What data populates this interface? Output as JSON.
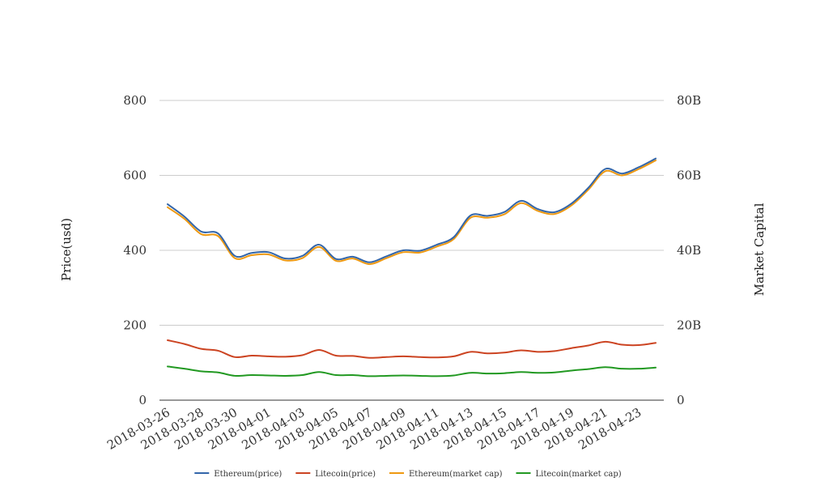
{
  "chart_data": {
    "type": "line",
    "title": "",
    "left_axis_label": "Price(usd)",
    "right_axis_label": "Market Capital",
    "left_ylim": [
      0,
      800
    ],
    "right_ylim": [
      0,
      80
    ],
    "left_ticks": [
      0,
      200,
      400,
      600,
      800
    ],
    "left_tick_labels": [
      "0",
      "200",
      "400",
      "600",
      "800"
    ],
    "right_tick_labels": [
      "0",
      "20B",
      "40B",
      "60B",
      "80B"
    ],
    "x_tick_labels": [
      "2018-03-26",
      "2018-03-28",
      "2018-03-30",
      "2018-04-01",
      "2018-04-03",
      "2018-04-05",
      "2018-04-07",
      "2018-04-09",
      "2018-04-11",
      "2018-04-13",
      "2018-04-15",
      "2018-04-17",
      "2018-04-19",
      "2018-04-21",
      "2018-04-23"
    ],
    "x": [
      "2018-03-26",
      "2018-03-27",
      "2018-03-28",
      "2018-03-29",
      "2018-03-30",
      "2018-03-31",
      "2018-04-01",
      "2018-04-02",
      "2018-04-03",
      "2018-04-04",
      "2018-04-05",
      "2018-04-06",
      "2018-04-07",
      "2018-04-08",
      "2018-04-09",
      "2018-04-10",
      "2018-04-11",
      "2018-04-12",
      "2018-04-13",
      "2018-04-14",
      "2018-04-15",
      "2018-04-16",
      "2018-04-17",
      "2018-04-18",
      "2018-04-19",
      "2018-04-20",
      "2018-04-21",
      "2018-04-22",
      "2018-04-23",
      "2018-04-24"
    ],
    "grid": true,
    "legend_position": "bottom",
    "series": [
      {
        "name": "Ethereum(price)",
        "axis": "left",
        "color": "#3366aa",
        "values": [
          523,
          490,
          450,
          445,
          385,
          393,
          395,
          378,
          385,
          415,
          377,
          383,
          368,
          384,
          400,
          399,
          415,
          435,
          493,
          492,
          502,
          532,
          510,
          502,
          525,
          567,
          617,
          605,
          622,
          645
        ]
      },
      {
        "name": "Litecoin(price)",
        "axis": "left",
        "color": "#cc4422",
        "values": [
          160,
          150,
          137,
          132,
          115,
          119,
          117,
          116,
          120,
          134,
          119,
          118,
          113,
          115,
          117,
          115,
          114,
          117,
          129,
          125,
          127,
          133,
          129,
          131,
          139,
          146,
          156,
          148,
          147,
          153
        ]
      },
      {
        "name": "Ethereum(market cap)",
        "axis": "right",
        "color": "#ee9911",
        "values": [
          51.5,
          48.4,
          44.3,
          43.8,
          37.9,
          38.7,
          38.9,
          37.3,
          37.9,
          40.9,
          37.2,
          37.8,
          36.3,
          37.9,
          39.5,
          39.4,
          41.0,
          43.0,
          48.7,
          48.7,
          49.6,
          52.6,
          50.5,
          49.7,
          52.0,
          56.2,
          61.1,
          60.0,
          61.7,
          64.0
        ]
      },
      {
        "name": "Litecoin(market cap)",
        "axis": "right",
        "color": "#229922",
        "values": [
          9.0,
          8.4,
          7.7,
          7.4,
          6.5,
          6.7,
          6.6,
          6.5,
          6.7,
          7.5,
          6.7,
          6.7,
          6.4,
          6.5,
          6.6,
          6.5,
          6.4,
          6.6,
          7.3,
          7.1,
          7.2,
          7.5,
          7.3,
          7.4,
          7.9,
          8.3,
          8.8,
          8.4,
          8.4,
          8.7
        ]
      }
    ]
  }
}
